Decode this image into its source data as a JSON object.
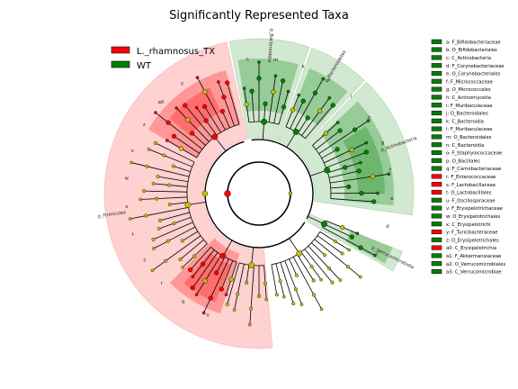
{
  "chart_data": {
    "type": "cladogram",
    "title": "Significantly Represented Taxa",
    "classes": [
      {
        "name": "L._rhamnosus_TX",
        "color": "#ff0000"
      },
      {
        "name": "WT",
        "color": "#008000"
      }
    ],
    "taxa": [
      {
        "id": "a",
        "label": "a: F_Bifidobacteriaceae",
        "group": "WT"
      },
      {
        "id": "b",
        "label": "b: O_Bifidobacteriales",
        "group": "WT"
      },
      {
        "id": "c",
        "label": "c: C_Actinobacteria",
        "group": "WT"
      },
      {
        "id": "d",
        "label": "d: F_Corynebacteriaceae",
        "group": "WT"
      },
      {
        "id": "e",
        "label": "e: O_Corynebacteriales",
        "group": "WT"
      },
      {
        "id": "f",
        "label": "f: F_Micrococcaceae",
        "group": "WT"
      },
      {
        "id": "g",
        "label": "g: O_Micrococcales",
        "group": "WT"
      },
      {
        "id": "h",
        "label": "h: C_Actinomycetia",
        "group": "WT"
      },
      {
        "id": "i",
        "label": "i: F_Muribaculaceae",
        "group": "WT"
      },
      {
        "id": "j",
        "label": "j: O_Bacteroidales",
        "group": "WT"
      },
      {
        "id": "k",
        "label": "k: C_Bacteroidia",
        "group": "WT"
      },
      {
        "id": "l",
        "label": "l: F_Muribaculaceae",
        "group": "WT"
      },
      {
        "id": "m",
        "label": "m: O_Bacteroidales",
        "group": "WT"
      },
      {
        "id": "n",
        "label": "n: C_Bacteroidia",
        "group": "WT"
      },
      {
        "id": "o",
        "label": "o: F_Staphylococcaceae",
        "group": "WT"
      },
      {
        "id": "p",
        "label": "p: O_Bacillales",
        "group": "WT"
      },
      {
        "id": "q",
        "label": "q: F_Carnobacteriaceae",
        "group": "WT"
      },
      {
        "id": "r",
        "label": "r: F_Enterococcaceae",
        "group": "L._rhamnosus_TX"
      },
      {
        "id": "s",
        "label": "s: F_Lactobacillaceae",
        "group": "L._rhamnosus_TX"
      },
      {
        "id": "t",
        "label": "t: O_Lactobacillales",
        "group": "L._rhamnosus_TX"
      },
      {
        "id": "u",
        "label": "u: F_Oscillospiraceae",
        "group": "WT"
      },
      {
        "id": "v",
        "label": "v: F_Erysipelotrichaceae",
        "group": "WT"
      },
      {
        "id": "w",
        "label": "w: O_Erysipelotrichales",
        "group": "WT"
      },
      {
        "id": "x",
        "label": "x: C_Erysipelotrichi",
        "group": "WT"
      },
      {
        "id": "y",
        "label": "y: F_Turicibacteraceae",
        "group": "L._rhamnosus_TX"
      },
      {
        "id": "z",
        "label": "z: O_Erysipelotrichales",
        "group": "WT"
      },
      {
        "id": "a0",
        "label": "a0: C_Erysipelotrichia",
        "group": "L._rhamnosus_TX"
      },
      {
        "id": "a1",
        "label": "a1: F_Akkermansiaceae",
        "group": "WT"
      },
      {
        "id": "a2",
        "label": "a2: O_Verrucomicrobiales",
        "group": "WT"
      },
      {
        "id": "a3",
        "label": "a3: C_Verrucomicrobiae",
        "group": "WT"
      }
    ],
    "phyla": [
      {
        "label": "p_Firmicutes",
        "group": "L._rhamnosus_TX",
        "start_deg": 175,
        "end_deg": 348
      },
      {
        "label": "p_Bacteroidota",
        "group": "WT",
        "start_deg": 349,
        "end_deg": 19
      },
      {
        "label": "p_Bacteroidetes",
        "group": "WT",
        "start_deg": 20,
        "end_deg": 43
      },
      {
        "label": "p_Actinobacteria",
        "group": "WT",
        "start_deg": 44,
        "end_deg": 98
      },
      {
        "label": "p_Verrucomicrobiota",
        "group": "WT",
        "start_deg": 112,
        "end_deg": 120
      }
    ],
    "sector_letters": [
      "n",
      "m",
      "k",
      "j",
      "i",
      "h",
      "g",
      "f",
      "e",
      "d",
      "c",
      "b",
      "a",
      "a3",
      "a2",
      "a1",
      "p",
      "o",
      "q",
      "r",
      "s",
      "t",
      "x",
      "w",
      "v",
      "z",
      "a0",
      "y"
    ]
  }
}
